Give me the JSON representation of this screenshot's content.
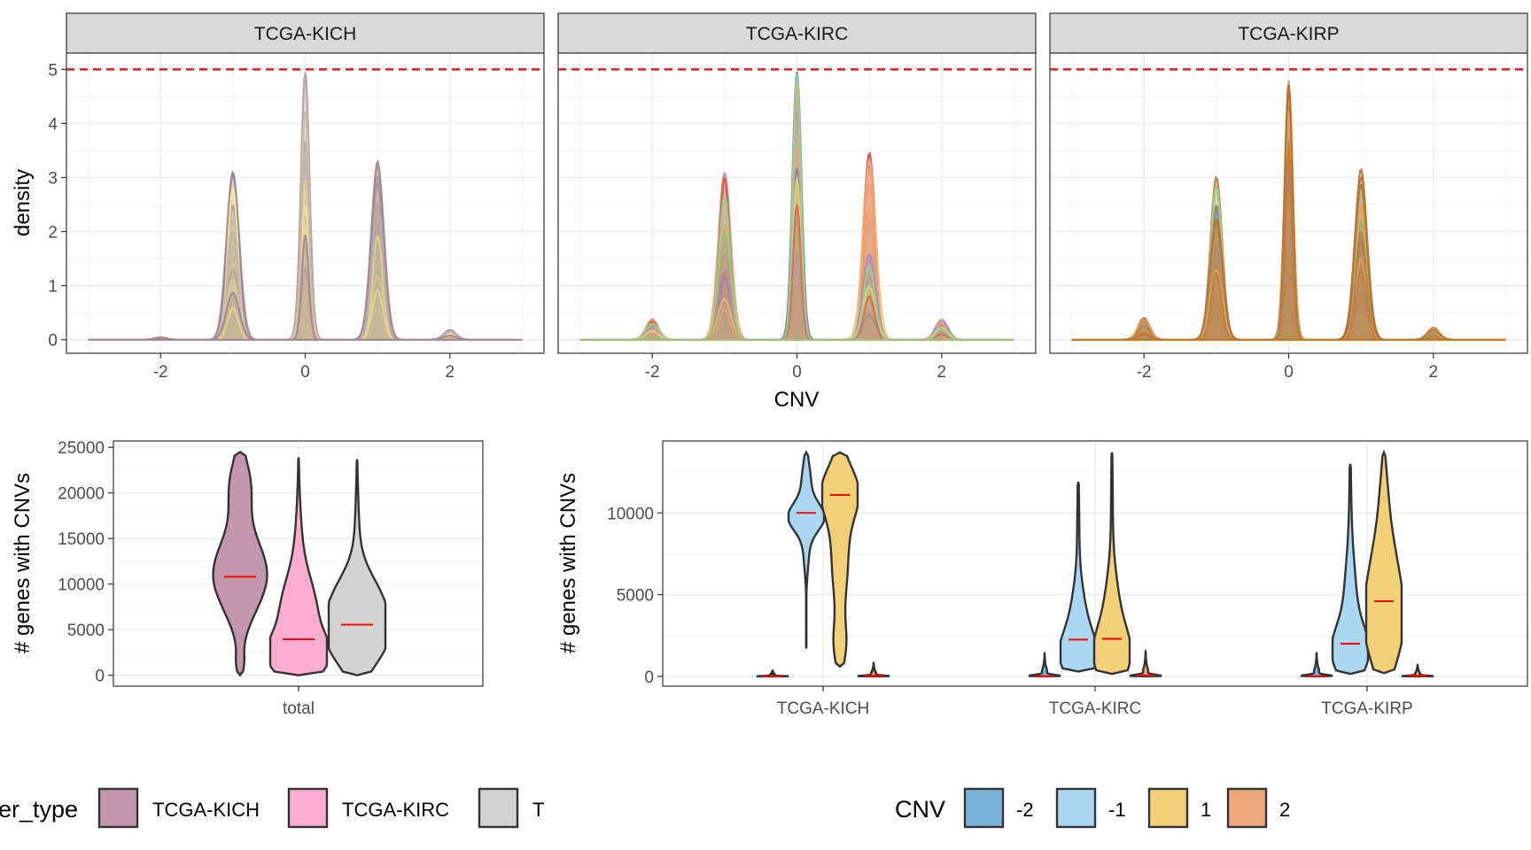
{
  "colors": {
    "reference_line": "#e41a1c",
    "median": "#ff0000",
    "strip_bg": "#d9d9d9",
    "grid": "#ebebeb",
    "panel_border": "#333333"
  },
  "chart_data": [
    {
      "type": "area",
      "kind": "faceted-density",
      "xlabel": "CNV",
      "ylabel": "density",
      "xlim": [
        -3.3,
        3.3
      ],
      "ylim": [
        -0.25,
        5.3
      ],
      "x_ticks": [
        "-2",
        "0",
        "2"
      ],
      "y_ticks": [
        "0",
        "1",
        "2",
        "3",
        "4",
        "5"
      ],
      "reference_line": {
        "y": 5,
        "style": "dashed"
      },
      "facets": [
        {
          "strip": "TCGA-KICH",
          "palette": [
            "#9c7e90",
            "#b3a2a6",
            "#f6f28c",
            "#fff58a",
            "#c9b9b0"
          ],
          "peaks": [
            {
              "x": -2,
              "height": 0.05
            },
            {
              "x": -1,
              "height": 3.1
            },
            {
              "x": 0,
              "height": 5.0
            },
            {
              "x": 1,
              "height": 3.3
            },
            {
              "x": 2,
              "height": 0.18
            }
          ]
        },
        {
          "strip": "TCGA-KIRC",
          "palette": [
            "#a48ad1",
            "#d4b68c",
            "#f1d170",
            "#e25040",
            "#8fd48e",
            "#7d5bb0",
            "#f7a97a"
          ],
          "peaks": [
            {
              "x": -2,
              "height": 0.38
            },
            {
              "x": -1,
              "height": 3.08
            },
            {
              "x": 0,
              "height": 5.0
            },
            {
              "x": 1,
              "height": 3.45
            },
            {
              "x": 2,
              "height": 0.38
            }
          ]
        },
        {
          "strip": "TCGA-KIRP",
          "palette": [
            "#b86a2a",
            "#c47a35",
            "#d59b52",
            "#8a6ec0",
            "#90d68f",
            "#f2b060"
          ],
          "peaks": [
            {
              "x": -2,
              "height": 0.4
            },
            {
              "x": -1,
              "height": 3.0
            },
            {
              "x": 0,
              "height": 5.0
            },
            {
              "x": 1,
              "height": 3.15
            },
            {
              "x": 2,
              "height": 0.22
            }
          ]
        }
      ]
    },
    {
      "type": "violin",
      "ylabel": "# genes with CNVs",
      "categories": [
        "total"
      ],
      "ylim": [
        -1200,
        25700
      ],
      "y_ticks": [
        0,
        5000,
        10000,
        15000,
        20000,
        25000
      ],
      "series": [
        {
          "name": "TCGA-KICH",
          "color": "#c497ac",
          "median": 10800,
          "min": 0,
          "max": 24500,
          "shape": "kich_total"
        },
        {
          "name": "TCGA-KIRC",
          "color": "#ffadcf",
          "median": 3950,
          "min": 0,
          "max": 23900,
          "shape": "kirc_total"
        },
        {
          "name": "T",
          "color": "#d3d3d3",
          "median": 5550,
          "min": 0,
          "max": 23700,
          "shape": "kirp_total"
        }
      ]
    },
    {
      "type": "violin",
      "ylabel": "# genes with CNVs",
      "categories": [
        "TCGA-KICH",
        "TCGA-KIRC",
        "TCGA-KIRP"
      ],
      "ylim": [
        -600,
        14400
      ],
      "y_ticks": [
        0,
        5000,
        10000
      ],
      "cnv_levels": [
        "-2",
        "-1",
        "1",
        "2"
      ],
      "level_colors": {
        "-2": "#7ab3d9",
        "-1": "#aad8f3",
        "1": "#f3cf78",
        "2": "#e9a77a"
      },
      "groups": [
        {
          "category": "TCGA-KICH",
          "violins": [
            {
              "level": "-2",
              "median": 0,
              "min": 0,
              "max": 350
            },
            {
              "level": "-1",
              "median": 10000,
              "min": 1700,
              "max": 13700
            },
            {
              "level": "1",
              "median": 11100,
              "min": 600,
              "max": 13700
            },
            {
              "level": "2",
              "median": 30,
              "min": 0,
              "max": 800
            }
          ]
        },
        {
          "category": "TCGA-KIRC",
          "violins": [
            {
              "level": "-2",
              "median": 0,
              "min": 0,
              "max": 1400
            },
            {
              "level": "-1",
              "median": 2250,
              "min": 300,
              "max": 11900
            },
            {
              "level": "1",
              "median": 2300,
              "min": 150,
              "max": 13700
            },
            {
              "level": "2",
              "median": 60,
              "min": 0,
              "max": 1500
            }
          ]
        },
        {
          "category": "TCGA-KIRP",
          "violins": [
            {
              "level": "-2",
              "median": 0,
              "min": 0,
              "max": 1400
            },
            {
              "level": "-1",
              "median": 2000,
              "min": 150,
              "max": 13000
            },
            {
              "level": "1",
              "median": 4600,
              "min": 200,
              "max": 13700
            },
            {
              "level": "2",
              "median": 40,
              "min": 0,
              "max": 700
            }
          ]
        }
      ]
    }
  ],
  "legends": {
    "cancer_type": {
      "title": "er_type",
      "items": [
        {
          "label": "TCGA-KICH",
          "color": "#c497ac"
        },
        {
          "label": "TCGA-KIRC",
          "color": "#ffadcf"
        },
        {
          "label": "T",
          "color": "#d3d3d3"
        }
      ]
    },
    "cnv": {
      "title": "CNV",
      "items": [
        {
          "label": "-2",
          "color": "#7ab3d9"
        },
        {
          "label": "-1",
          "color": "#aad8f3"
        },
        {
          "label": "1",
          "color": "#f3cf78"
        },
        {
          "label": "2",
          "color": "#e9a77a"
        }
      ]
    }
  }
}
